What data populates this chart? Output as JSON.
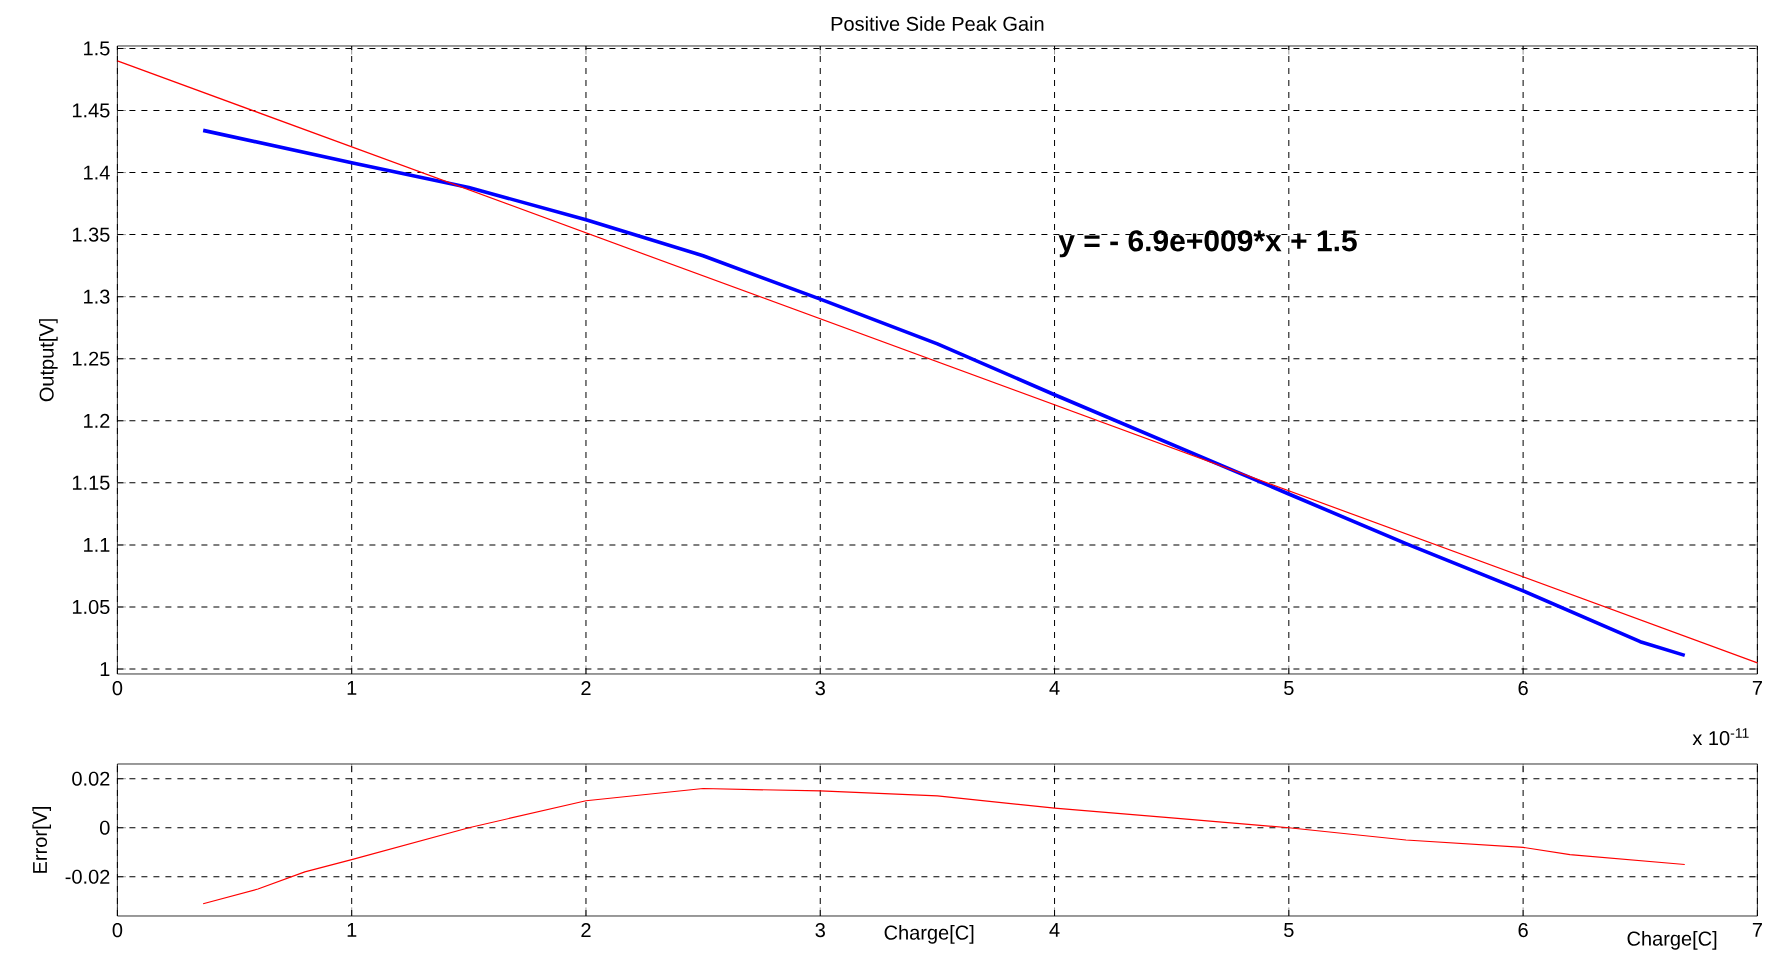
{
  "chart_data": [
    {
      "type": "line",
      "title": "Positive Side Peak Gain",
      "ylabel": "Output[V]",
      "annotations": [
        "y = - 6.9e+009*x + 1.5",
        "x 10$^{-11}$"
      ],
      "series": [
        {
          "color": "#0000ff",
          "x": [
            0.366,
            1,
            1.5,
            2,
            2.5,
            3,
            3.5,
            4,
            4.5,
            5,
            5.5,
            6,
            6.5,
            6.69
          ],
          "values": [
            1.434,
            1.408,
            1.388,
            1.362,
            1.333,
            1.298,
            1.262,
            1.221,
            1.181,
            1.141,
            1.101,
            1.063,
            1.022,
            1.011
          ]
        },
        {
          "type": "line",
          "color": "#ff0000",
          "x": [
            0,
            7
          ],
          "values": [
            1.49,
            1.005
          ]
        }
      ],
      "xlim": [
        0,
        7
      ],
      "ylim": [
        0.996,
        1.502
      ],
      "xticks": [
        0,
        1,
        2,
        3,
        4,
        5,
        6,
        7
      ],
      "yticks": [
        1,
        1.05,
        1.1,
        1.15,
        1.2,
        1.25,
        1.3,
        1.35,
        1.4,
        1.45,
        1.5
      ],
      "grid": true,
      "marker": "none"
    },
    {
      "type": "line",
      "xlabel": "Charge[C]",
      "ylabel": "Error[V]",
      "annotations": [
        "Charge[C]"
      ],
      "series": [
        {
          "color": "#ff0000",
          "x": [
            0.366,
            0.6,
            0.8,
            1,
            1.5,
            2,
            2.5,
            3,
            3.5,
            4,
            4.5,
            5,
            5.5,
            6,
            6.2,
            6.69
          ],
          "values": [
            -0.031,
            -0.025,
            -0.018,
            -0.013,
            0,
            0.011,
            0.016,
            0.015,
            0.013,
            0.008,
            0.004,
            0,
            -0.005,
            -0.008,
            -0.011,
            -0.015
          ]
        }
      ],
      "xlim": [
        0,
        7
      ],
      "ylim": [
        -0.036,
        0.026
      ],
      "xticks": [
        0,
        1,
        2,
        3,
        4,
        5,
        6,
        7
      ],
      "yticks": [
        -0.02,
        0,
        0.02
      ],
      "grid": true,
      "marker": "none"
    }
  ]
}
